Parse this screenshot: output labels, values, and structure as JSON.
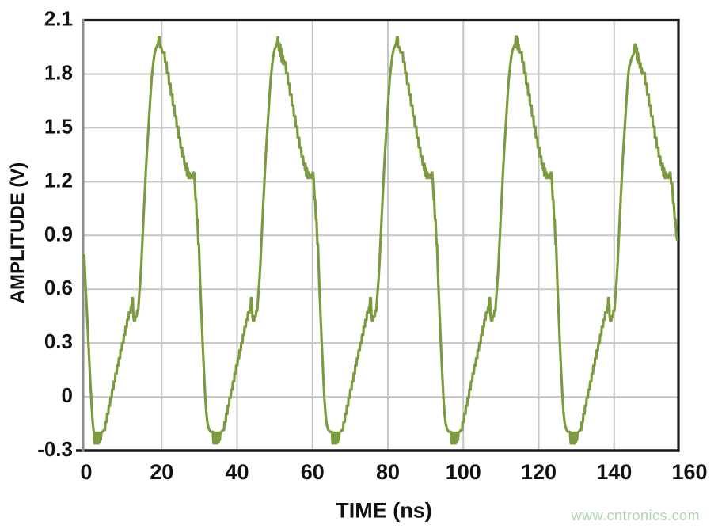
{
  "chart_data": {
    "type": "line",
    "title": "",
    "xlabel": "TIME (ns)",
    "ylabel": "AMPLITUDE (V)",
    "xlim": [
      0,
      160
    ],
    "ylim": [
      -0.3,
      2.1
    ],
    "xtick_values": [
      0,
      20,
      40,
      60,
      80,
      100,
      120,
      140,
      160
    ],
    "xtick_labels": [
      "0",
      "20",
      "40",
      "60",
      "80",
      "100",
      "120",
      "140",
      "160"
    ],
    "ytick_values": [
      2.1,
      1.8,
      1.5,
      1.2,
      0.9,
      0.6,
      0.3,
      0,
      -0.3
    ],
    "ytick_labels": [
      "2.1",
      "1.8",
      "1.5",
      "1.2",
      "0.9",
      "0.6",
      "0.3",
      "0",
      "-0.3"
    ],
    "grid": true,
    "legend": "none",
    "line_color": "#7c9b3e",
    "waveform": {
      "description": "DAC-reconstructed sine wave, period 32 ns, amplitude -0.26 V to 2.01 V",
      "period_ns": 32,
      "cycles": 5,
      "offset_ns": 2.85,
      "t_end_ns": 159.7,
      "end_override_from_ns": 158.1,
      "end_points": [
        [
          158.3,
          1.19
        ],
        [
          158.6,
          1.08
        ],
        [
          158.75,
          1.08
        ],
        [
          159.0,
          0.99
        ],
        [
          159.2,
          0.99
        ],
        [
          159.45,
          0.9
        ],
        [
          159.7,
          0.87
        ]
      ],
      "lead_points": [
        [
          0.0,
          0.79
        ],
        [
          0.3,
          0.79
        ],
        [
          0.7,
          0.6
        ],
        [
          1.1,
          0.44
        ],
        [
          1.5,
          0.27
        ],
        [
          1.9,
          0.1
        ],
        [
          2.3,
          -0.05
        ],
        [
          2.6,
          -0.15
        ]
      ],
      "period_points": [
        [
          0.0,
          -0.195
        ],
        [
          0.2,
          -0.26
        ],
        [
          0.38,
          -0.2
        ],
        [
          0.55,
          -0.26
        ],
        [
          0.72,
          -0.2
        ],
        [
          0.89,
          -0.26
        ],
        [
          1.06,
          -0.2
        ],
        [
          1.23,
          -0.26
        ],
        [
          1.4,
          -0.2
        ],
        [
          1.57,
          -0.255
        ],
        [
          1.74,
          -0.2
        ],
        [
          1.9,
          -0.24
        ],
        [
          2.05,
          -0.2
        ],
        [
          2.35,
          -0.195
        ],
        [
          2.7,
          -0.185
        ],
        [
          3.02,
          -0.185
        ],
        [
          3.15,
          -0.14
        ],
        [
          3.47,
          -0.14
        ],
        [
          3.6,
          -0.095
        ],
        [
          3.92,
          -0.095
        ],
        [
          4.05,
          -0.05
        ],
        [
          4.37,
          -0.05
        ],
        [
          4.5,
          -0.005
        ],
        [
          4.82,
          -0.005
        ],
        [
          4.95,
          0.04
        ],
        [
          5.27,
          0.04
        ],
        [
          5.4,
          0.085
        ],
        [
          5.72,
          0.085
        ],
        [
          5.85,
          0.13
        ],
        [
          6.17,
          0.13
        ],
        [
          6.3,
          0.175
        ],
        [
          6.62,
          0.175
        ],
        [
          6.75,
          0.215
        ],
        [
          7.07,
          0.215
        ],
        [
          7.2,
          0.26
        ],
        [
          7.52,
          0.26
        ],
        [
          7.65,
          0.3
        ],
        [
          7.97,
          0.3
        ],
        [
          8.1,
          0.345
        ],
        [
          8.42,
          0.345
        ],
        [
          8.55,
          0.39
        ],
        [
          8.87,
          0.39
        ],
        [
          9.0,
          0.43
        ],
        [
          9.32,
          0.43
        ],
        [
          9.45,
          0.47
        ],
        [
          9.87,
          0.47
        ],
        [
          10.0,
          0.5
        ],
        [
          10.2,
          0.5
        ],
        [
          10.28,
          0.55
        ],
        [
          10.52,
          0.55
        ],
        [
          10.62,
          0.46
        ],
        [
          10.8,
          0.425
        ],
        [
          11.1,
          0.425
        ],
        [
          11.25,
          0.45
        ],
        [
          11.55,
          0.45
        ],
        [
          11.7,
          0.48
        ],
        [
          11.95,
          0.48
        ],
        [
          12.1,
          0.53
        ],
        [
          12.3,
          0.585
        ],
        [
          12.55,
          0.655
        ],
        [
          12.8,
          0.745
        ],
        [
          13.05,
          0.85
        ],
        [
          13.3,
          0.96
        ],
        [
          13.55,
          1.07
        ],
        [
          13.8,
          1.17
        ],
        [
          14.05,
          1.27
        ],
        [
          14.35,
          1.38
        ],
        [
          14.65,
          1.48
        ],
        [
          14.95,
          1.58
        ],
        [
          15.25,
          1.68
        ],
        [
          15.6,
          1.78
        ],
        [
          15.95,
          1.85
        ],
        [
          16.3,
          1.905
        ],
        [
          16.65,
          1.94
        ],
        [
          17.0,
          1.955
        ],
        [
          17.3,
          1.97
        ],
        [
          17.48,
          2.005
        ],
        [
          17.72,
          2.005
        ],
        [
          17.82,
          1.95
        ],
        [
          18.15,
          1.95
        ],
        [
          18.45,
          1.92
        ],
        [
          19.05,
          1.92
        ],
        [
          19.2,
          1.865
        ],
        [
          19.58,
          1.865
        ],
        [
          19.72,
          1.805
        ],
        [
          20.1,
          1.805
        ],
        [
          20.24,
          1.745
        ],
        [
          20.62,
          1.745
        ],
        [
          20.76,
          1.685
        ],
        [
          21.14,
          1.685
        ],
        [
          21.28,
          1.625
        ],
        [
          21.66,
          1.625
        ],
        [
          21.8,
          1.565
        ],
        [
          22.18,
          1.565
        ],
        [
          22.32,
          1.505
        ],
        [
          22.7,
          1.505
        ],
        [
          22.84,
          1.445
        ],
        [
          23.22,
          1.445
        ],
        [
          23.36,
          1.39
        ],
        [
          23.74,
          1.39
        ],
        [
          23.88,
          1.34
        ],
        [
          24.26,
          1.34
        ],
        [
          24.4,
          1.295
        ],
        [
          24.66,
          1.295
        ],
        [
          24.78,
          1.265
        ],
        [
          24.92,
          1.3
        ],
        [
          25.1,
          1.235
        ],
        [
          25.3,
          1.275
        ],
        [
          25.5,
          1.22
        ],
        [
          25.72,
          1.25
        ],
        [
          25.95,
          1.22
        ],
        [
          26.25,
          1.235
        ],
        [
          26.55,
          1.22
        ],
        [
          26.8,
          1.25
        ],
        [
          27.0,
          1.25
        ],
        [
          27.18,
          1.19
        ],
        [
          27.38,
          1.1
        ],
        [
          27.52,
          1.1
        ],
        [
          27.72,
          0.99
        ],
        [
          27.87,
          0.99
        ],
        [
          28.12,
          0.85
        ],
        [
          28.27,
          0.85
        ],
        [
          28.62,
          0.63
        ],
        [
          28.97,
          0.45
        ],
        [
          29.32,
          0.28
        ],
        [
          29.66,
          0.13
        ],
        [
          30.0,
          -0.01
        ],
        [
          30.3,
          -0.095
        ],
        [
          30.6,
          -0.15
        ],
        [
          30.95,
          -0.18
        ],
        [
          31.4,
          -0.195
        ]
      ],
      "peak_overrides": {
        "1": {
          "from": 17.72,
          "to": 19.2,
          "points": [
            [
              17.8,
              1.93
            ],
            [
              17.92,
              1.97
            ],
            [
              18.04,
              1.91
            ],
            [
              18.16,
              1.96
            ],
            [
              18.28,
              1.9
            ],
            [
              18.4,
              1.94
            ],
            [
              18.52,
              1.87
            ],
            [
              18.64,
              1.91
            ],
            [
              18.76,
              1.86
            ],
            [
              18.88,
              1.9
            ],
            [
              19.0,
              1.855
            ],
            [
              19.1,
              1.875
            ]
          ]
        },
        "3": {
          "from": 17.3,
          "to": 18.45,
          "points": [
            [
              17.32,
              1.97
            ],
            [
              17.4,
              2.01
            ],
            [
              17.5,
              1.95
            ],
            [
              17.62,
              2.01
            ],
            [
              17.72,
              1.95
            ],
            [
              17.82,
              2.0
            ],
            [
              17.92,
              1.94
            ],
            [
              18.02,
              1.98
            ],
            [
              18.12,
              1.93
            ],
            [
              18.22,
              1.96
            ],
            [
              18.32,
              1.92
            ],
            [
              18.4,
              1.94
            ]
          ]
        },
        "4": {
          "from": 16.0,
          "to": 19.6,
          "points": [
            [
              16.1,
              1.85
            ],
            [
              16.45,
              1.88
            ],
            [
              16.8,
              1.9
            ],
            [
              17.15,
              1.915
            ],
            [
              17.3,
              1.93
            ],
            [
              17.42,
              1.965
            ],
            [
              17.75,
              1.965
            ],
            [
              17.88,
              1.92
            ],
            [
              18.0,
              1.945
            ],
            [
              18.12,
              1.88
            ],
            [
              18.3,
              1.915
            ],
            [
              18.45,
              1.86
            ],
            [
              18.62,
              1.885
            ],
            [
              18.8,
              1.835
            ],
            [
              18.98,
              1.86
            ],
            [
              19.15,
              1.81
            ],
            [
              19.32,
              1.83
            ],
            [
              19.5,
              1.8
            ]
          ]
        }
      }
    }
  },
  "watermark": {
    "text": "www.cntronics.com",
    "color": "#aed6ab"
  },
  "colors": {
    "grid": "#c6c6c6",
    "axis_dark": "#1a1a1a",
    "axis_left": "#8c8c8c",
    "text": "#111111"
  }
}
